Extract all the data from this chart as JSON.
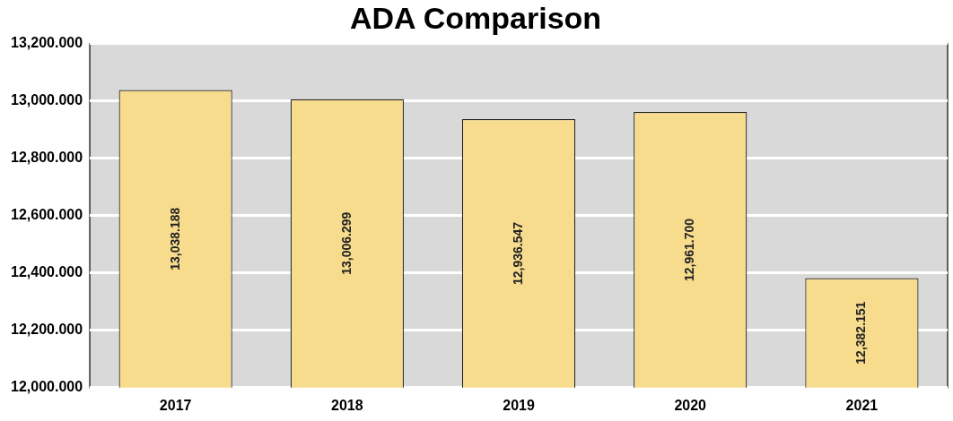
{
  "chart_data": {
    "type": "bar",
    "title": "ADA Comparison",
    "categories": [
      "2017",
      "2018",
      "2019",
      "2020",
      "2021"
    ],
    "values": [
      13038.188,
      13006.299,
      12936.547,
      12961.7,
      12382.151
    ],
    "value_labels": [
      "13,038.188",
      "13,006.299",
      "12,936.547",
      "12,961.700",
      "12,382.151"
    ],
    "color": "#f8dc8e",
    "ylim": [
      12000,
      13200
    ],
    "yticks": [
      {
        "value": 12000,
        "label": "12,000.000"
      },
      {
        "value": 12200,
        "label": "12,200.000"
      },
      {
        "value": 12400,
        "label": "12,400.000"
      },
      {
        "value": 12600,
        "label": "12,600.000"
      },
      {
        "value": 12800,
        "label": "12,800.000"
      },
      {
        "value": 13000,
        "label": "13,000.000"
      },
      {
        "value": 13200,
        "label": "13,200.000"
      }
    ],
    "grid": "y",
    "legend": false
  }
}
